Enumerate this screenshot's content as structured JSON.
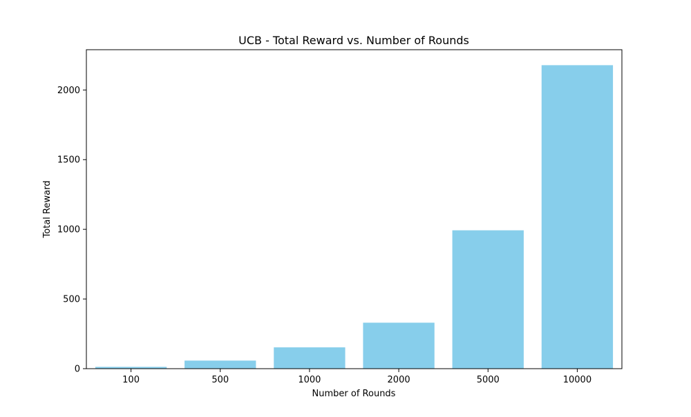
{
  "chart_data": {
    "type": "bar",
    "title": "UCB - Total Reward vs. Number of Rounds",
    "xlabel": "Number of Rounds",
    "ylabel": "Total Reward",
    "categories": [
      "100",
      "500",
      "1000",
      "2000",
      "5000",
      "10000"
    ],
    "values": [
      13,
      58,
      153,
      330,
      993,
      2178
    ],
    "ylim": [
      0,
      2289
    ],
    "yticks": [
      0,
      500,
      1000,
      1500,
      2000
    ],
    "grid": false,
    "bar_color": "#87ceeb",
    "frame_color": "#000000"
  }
}
